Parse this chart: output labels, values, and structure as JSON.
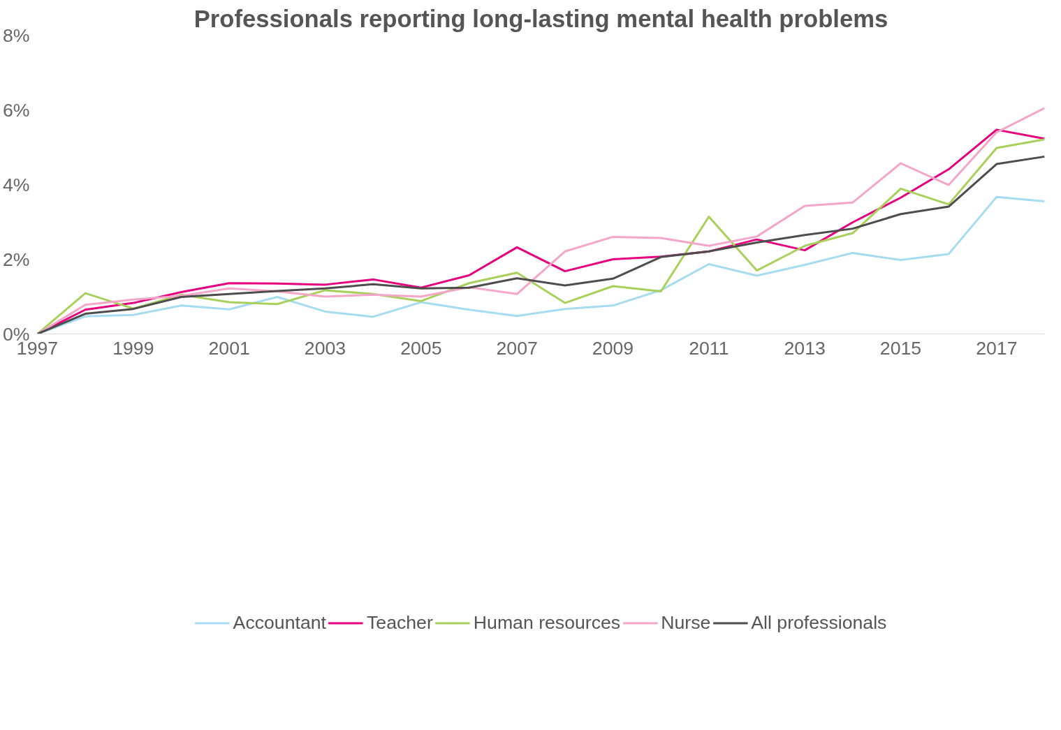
{
  "chart_data": {
    "type": "line",
    "title": "Professionals reporting long-lasting mental health problems",
    "x": [
      1997,
      1998,
      1999,
      2000,
      2001,
      2002,
      2003,
      2004,
      2005,
      2006,
      2007,
      2008,
      2009,
      2010,
      2011,
      2012,
      2013,
      2014,
      2015,
      2016,
      2017,
      2018
    ],
    "series": [
      {
        "name": "Accountant",
        "color": "#a6dcef",
        "values": [
          0,
          0.47,
          0.51,
          0.76,
          0.66,
          0.99,
          0.6,
          0.46,
          0.85,
          0.65,
          0.48,
          0.67,
          0.76,
          1.17,
          1.87,
          1.56,
          1.85,
          2.17,
          1.98,
          2.14,
          3.67,
          3.55
        ]
      },
      {
        "name": "Teacher",
        "color": "#e6007e",
        "values": [
          0,
          0.65,
          0.83,
          1.12,
          1.36,
          1.35,
          1.32,
          1.46,
          1.24,
          1.57,
          2.32,
          1.68,
          2.0,
          2.07,
          2.21,
          2.53,
          2.24,
          2.99,
          3.65,
          4.41,
          5.47,
          5.23
        ]
      },
      {
        "name": "Human resources",
        "color": "#a8d05a",
        "values": [
          0,
          1.09,
          0.68,
          1.05,
          0.85,
          0.8,
          1.17,
          1.07,
          0.88,
          1.36,
          1.64,
          0.83,
          1.28,
          1.14,
          3.14,
          1.7,
          2.36,
          2.7,
          3.89,
          3.47,
          4.98,
          5.21
        ]
      },
      {
        "name": "Nurse",
        "color": "#f4a6c8",
        "values": [
          0,
          0.78,
          0.92,
          1.02,
          1.22,
          1.14,
          1.0,
          1.05,
          1.0,
          1.25,
          1.07,
          2.21,
          2.6,
          2.57,
          2.36,
          2.61,
          3.43,
          3.52,
          4.57,
          3.99,
          5.4,
          6.05
        ]
      },
      {
        "name": "All professionals",
        "color": "#4d4d4d",
        "values": [
          0,
          0.54,
          0.67,
          0.99,
          1.07,
          1.15,
          1.22,
          1.33,
          1.22,
          1.24,
          1.49,
          1.3,
          1.48,
          2.06,
          2.21,
          2.45,
          2.65,
          2.82,
          3.21,
          3.41,
          4.55,
          4.75
        ]
      }
    ],
    "xlim": [
      1997,
      2018
    ],
    "xticks": [
      1997,
      1999,
      2001,
      2003,
      2005,
      2007,
      2009,
      2011,
      2013,
      2015,
      2017
    ],
    "ylim": [
      0,
      8
    ],
    "yticks": [
      {
        "value": 0,
        "label": "0%"
      },
      {
        "value": 2,
        "label": "2%"
      },
      {
        "value": 4,
        "label": "4%"
      },
      {
        "value": 6,
        "label": "6%"
      },
      {
        "value": 8,
        "label": "8%"
      }
    ],
    "grid": false,
    "legend": "bottom",
    "marker": "none",
    "line_style": "solid"
  }
}
